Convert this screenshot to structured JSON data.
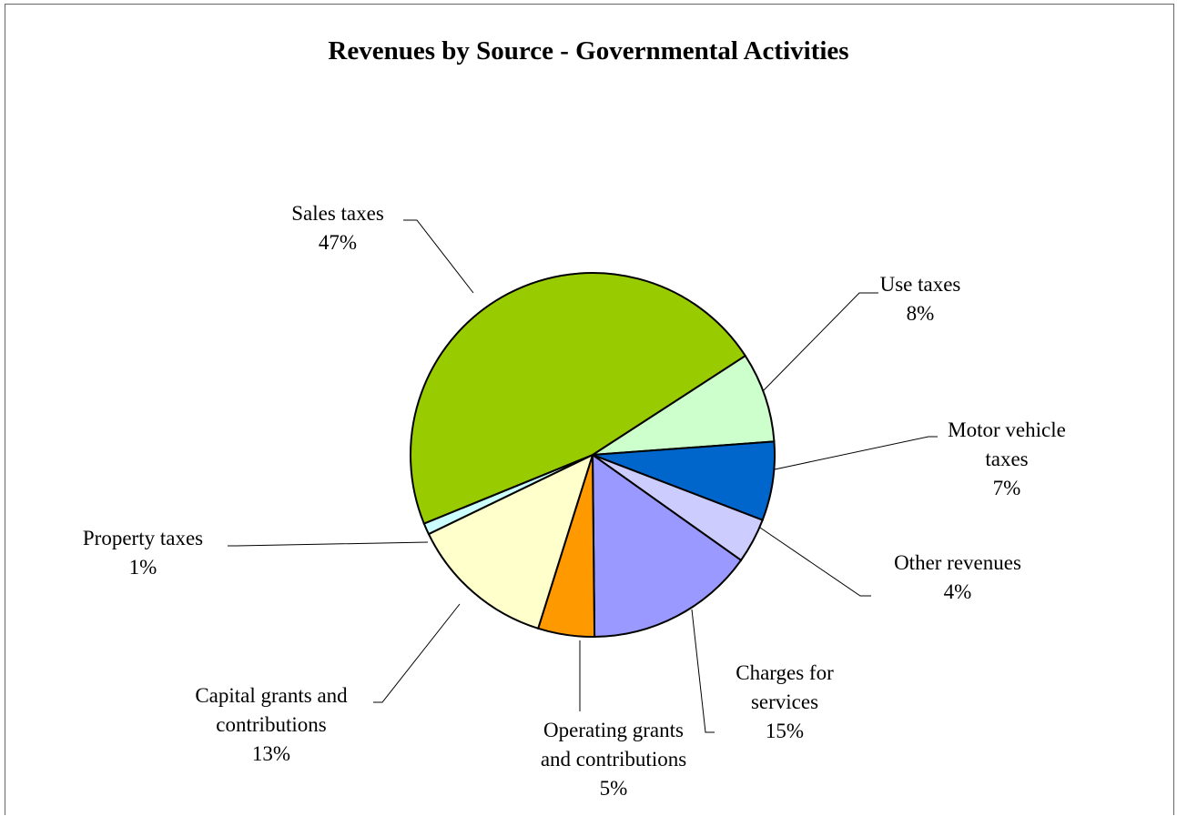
{
  "chart_data": {
    "type": "pie",
    "title": "Revenues by Source - Governmental Activities",
    "slices": [
      {
        "label_lines": [
          "Use taxes"
        ],
        "value": 8,
        "value_label": "8%",
        "color": "#ccffcc"
      },
      {
        "label_lines": [
          "Motor vehicle",
          "taxes"
        ],
        "value": 7,
        "value_label": "7%",
        "color": "#0066cc"
      },
      {
        "label_lines": [
          "Other revenues"
        ],
        "value": 4,
        "value_label": "4%",
        "color": "#ccccff"
      },
      {
        "label_lines": [
          "Charges for",
          "services"
        ],
        "value": 15,
        "value_label": "15%",
        "color": "#9999ff"
      },
      {
        "label_lines": [
          "Operating grants",
          "and contributions"
        ],
        "value": 5,
        "value_label": "5%",
        "color": "#ff9900"
      },
      {
        "label_lines": [
          "Capital grants and",
          "contributions"
        ],
        "value": 13,
        "value_label": "13%",
        "color": "#ffffcc"
      },
      {
        "label_lines": [
          "Property taxes"
        ],
        "value": 1,
        "value_label": "1%",
        "color": "#ccffff"
      },
      {
        "label_lines": [
          "Sales taxes"
        ],
        "value": 47,
        "value_label": "47%",
        "color": "#99cc00"
      }
    ],
    "start_angle_deg": 57,
    "direction": "clockwise",
    "legend": "none",
    "data_labels": "outside-with-leader-lines"
  }
}
